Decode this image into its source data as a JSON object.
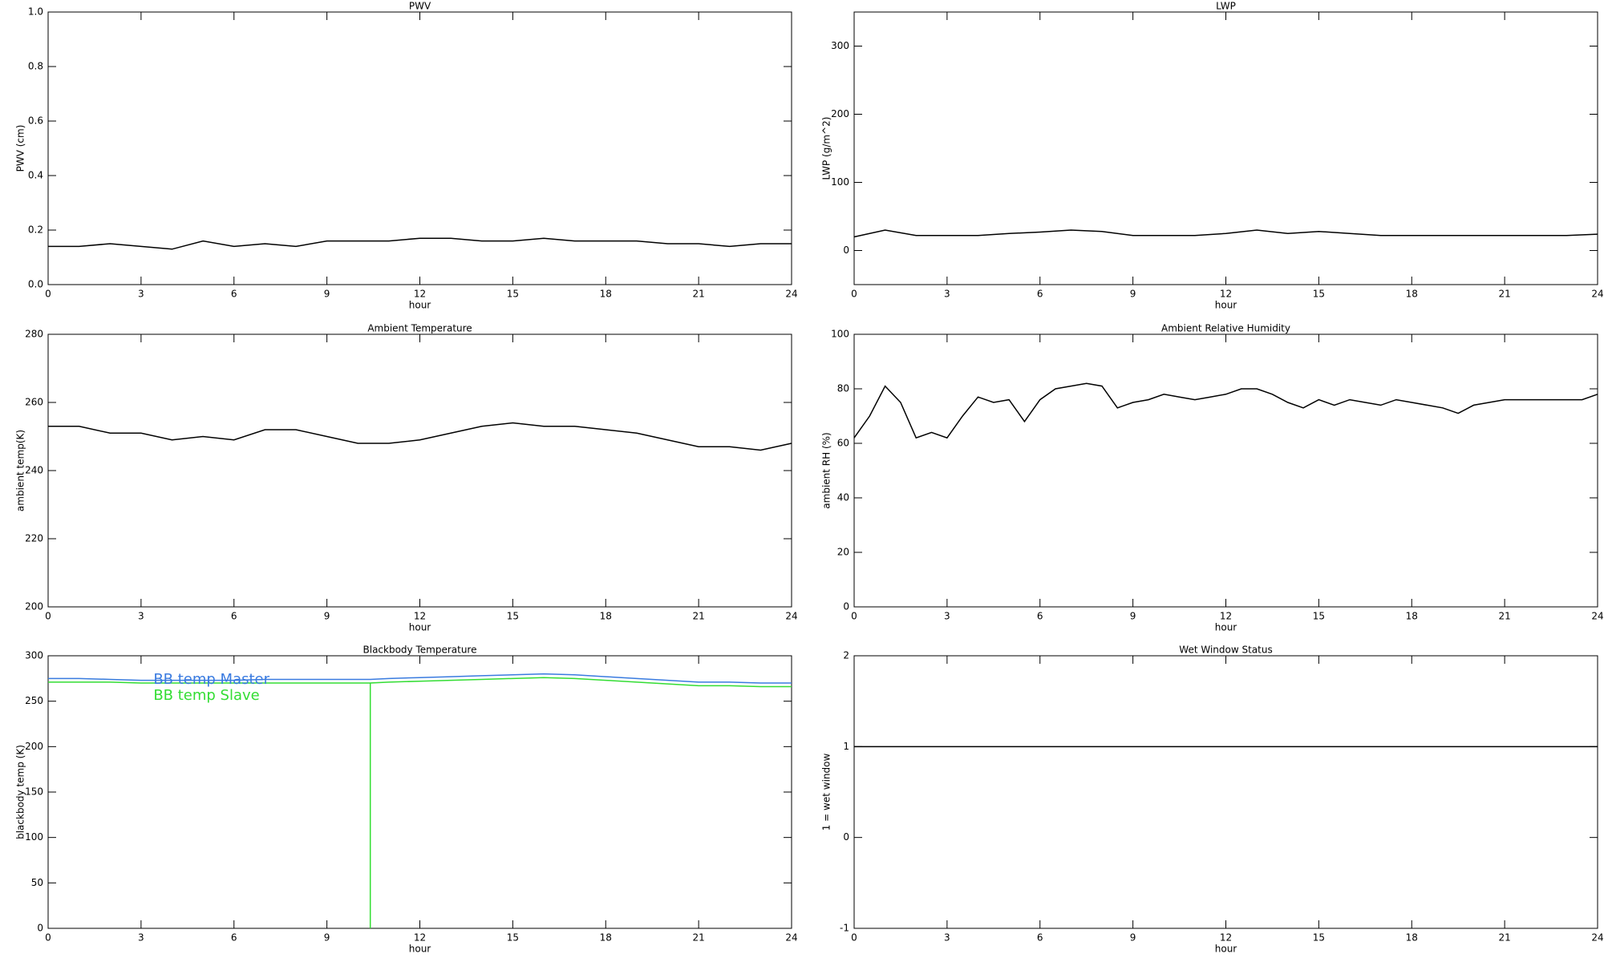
{
  "chart_data": [
    {
      "type": "line",
      "title": "PWV",
      "xlabel": "hour",
      "ylabel": "PWV (cm)",
      "x": [
        0,
        1,
        2,
        3,
        4,
        5,
        6,
        7,
        8,
        9,
        10,
        11,
        12,
        13,
        14,
        15,
        16,
        17,
        18,
        19,
        20,
        21,
        22,
        23,
        24
      ],
      "values": [
        0.14,
        0.14,
        0.15,
        0.14,
        0.13,
        0.16,
        0.14,
        0.15,
        0.14,
        0.16,
        0.16,
        0.16,
        0.17,
        0.17,
        0.16,
        0.16,
        0.17,
        0.16,
        0.16,
        0.16,
        0.15,
        0.15,
        0.14,
        0.15,
        0.15
      ],
      "color": "#000000",
      "xlim": [
        0,
        24
      ],
      "xticks": [
        0,
        3,
        6,
        9,
        12,
        15,
        18,
        21,
        24
      ],
      "ylim": [
        0,
        1
      ],
      "yticks": [
        {
          "value": 0,
          "label": "0.0"
        },
        0.2,
        0.4,
        0.6,
        0.8,
        {
          "value": 1,
          "label": "1.0"
        }
      ]
    },
    {
      "type": "line",
      "title": "LWP",
      "xlabel": "hour",
      "ylabel": "LWP (g/m^2)",
      "x": [
        0,
        1,
        2,
        3,
        4,
        5,
        6,
        7,
        8,
        9,
        10,
        11,
        12,
        13,
        14,
        15,
        16,
        17,
        18,
        19,
        20,
        21,
        22,
        23,
        24
      ],
      "values": [
        20,
        30,
        22,
        22,
        22,
        25,
        27,
        30,
        28,
        22,
        22,
        22,
        25,
        30,
        25,
        28,
        25,
        22,
        22,
        22,
        22,
        22,
        22,
        22,
        24
      ],
      "color": "#000000",
      "xlim": [
        0,
        24
      ],
      "xticks": [
        0,
        3,
        6,
        9,
        12,
        15,
        18,
        21,
        24
      ],
      "ylim": [
        -50,
        350
      ],
      "yticks": [
        0,
        100,
        200,
        300
      ]
    },
    {
      "type": "line",
      "title": "Ambient Temperature",
      "xlabel": "hour",
      "ylabel": "ambient temp(K)",
      "x": [
        0,
        1,
        2,
        3,
        4,
        5,
        6,
        7,
        8,
        9,
        10,
        11,
        12,
        13,
        14,
        15,
        16,
        17,
        18,
        19,
        20,
        21,
        22,
        23,
        24
      ],
      "values": [
        253,
        253,
        251,
        251,
        249,
        250,
        249,
        252,
        252,
        250,
        248,
        248,
        249,
        251,
        253,
        254,
        253,
        253,
        252,
        251,
        249,
        247,
        247,
        246,
        248
      ],
      "color": "#000000",
      "xlim": [
        0,
        24
      ],
      "xticks": [
        0,
        3,
        6,
        9,
        12,
        15,
        18,
        21,
        24
      ],
      "ylim": [
        200,
        280
      ],
      "yticks": [
        200,
        220,
        240,
        260,
        280
      ]
    },
    {
      "type": "line",
      "title": "Ambient Relative Humidity",
      "xlabel": "hour",
      "ylabel": "ambient RH (%)",
      "x": [
        0,
        0.5,
        1,
        1.5,
        2,
        2.5,
        3,
        3.5,
        4,
        4.5,
        5,
        5.5,
        6,
        6.5,
        7,
        7.5,
        8,
        8.5,
        9,
        9.5,
        10,
        10.5,
        11,
        11.5,
        12,
        12.5,
        13,
        13.5,
        14,
        14.5,
        15,
        15.5,
        16,
        16.5,
        17,
        17.5,
        18,
        18.5,
        19,
        19.5,
        20,
        20.5,
        21,
        21.5,
        22,
        22.5,
        23,
        23.5,
        24
      ],
      "values": [
        62,
        70,
        81,
        75,
        62,
        64,
        62,
        70,
        77,
        75,
        76,
        68,
        76,
        80,
        81,
        82,
        81,
        73,
        75,
        76,
        78,
        77,
        76,
        77,
        78,
        80,
        80,
        78,
        75,
        73,
        76,
        74,
        76,
        75,
        74,
        76,
        75,
        74,
        73,
        71,
        74,
        75,
        76,
        76,
        76,
        76,
        76,
        76,
        78
      ],
      "color": "#000000",
      "xlim": [
        0,
        24
      ],
      "xticks": [
        0,
        3,
        6,
        9,
        12,
        15,
        18,
        21,
        24
      ],
      "ylim": [
        0,
        100
      ],
      "yticks": [
        0,
        20,
        40,
        60,
        80,
        100
      ]
    },
    {
      "type": "line",
      "title": "Blackbody Temperature",
      "xlabel": "hour",
      "ylabel": "blackbody temp (K)",
      "x": [
        0,
        1,
        2,
        3,
        4,
        5,
        6,
        7,
        8,
        9,
        10,
        10.4,
        10.4,
        10.4,
        11,
        12,
        13,
        14,
        15,
        16,
        17,
        18,
        19,
        20,
        21,
        22,
        23,
        24
      ],
      "series": [
        {
          "name": "BB temp Master",
          "color": "#3a7be0",
          "values": [
            275,
            275,
            274,
            273,
            273,
            273,
            273,
            274,
            274,
            274,
            274,
            274,
            274,
            274,
            275,
            276,
            277,
            278,
            279,
            280,
            279,
            277,
            275,
            273,
            271,
            271,
            270,
            270
          ]
        },
        {
          "name": "BB temp Slave",
          "color": "#33dd33",
          "values": [
            271,
            271,
            271,
            270,
            270,
            270,
            270,
            270,
            270,
            270,
            270,
            270,
            0,
            270,
            271,
            272,
            273,
            274,
            275,
            276,
            275,
            273,
            271,
            269,
            267,
            267,
            266,
            266
          ]
        }
      ],
      "xlim": [
        0,
        24
      ],
      "xticks": [
        0,
        3,
        6,
        9,
        12,
        15,
        18,
        21,
        24
      ],
      "ylim": [
        0,
        300
      ],
      "yticks": [
        0,
        50,
        100,
        150,
        200,
        250,
        300
      ]
    },
    {
      "type": "line",
      "title": "Wet Window Status",
      "xlabel": "hour",
      "ylabel": "1 = wet window",
      "x": [
        0,
        24
      ],
      "values": [
        1,
        1
      ],
      "color": "#000000",
      "xlim": [
        0,
        24
      ],
      "xticks": [
        0,
        3,
        6,
        9,
        12,
        15,
        18,
        21,
        24
      ],
      "ylim": [
        -1,
        2
      ],
      "yticks": [
        -1,
        0,
        1,
        2
      ]
    }
  ]
}
